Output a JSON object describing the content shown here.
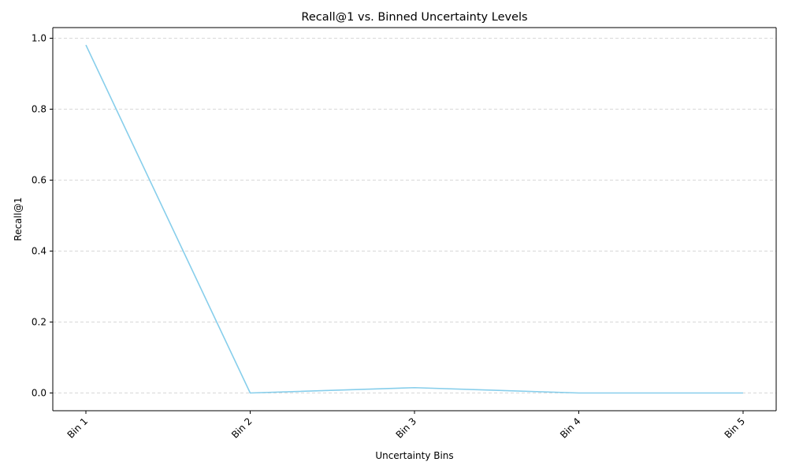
{
  "chart_data": {
    "type": "line",
    "title": "Recall@1 vs. Binned Uncertainty Levels",
    "xlabel": "Uncertainty Bins",
    "ylabel": "Recall@1",
    "categories": [
      "Bin 1",
      "Bin 2",
      "Bin 3",
      "Bin 4",
      "Bin 5"
    ],
    "series": [
      {
        "values": [
          0.981,
          0.0,
          0.015,
          0.0,
          0.0
        ],
        "color": "#87ceeb"
      }
    ],
    "ylim": [
      -0.05,
      1.03
    ],
    "yticks": [
      0.0,
      0.2,
      0.4,
      0.6,
      0.8,
      1.0
    ],
    "ytick_labels": [
      "0.0",
      "0.2",
      "0.4",
      "0.6",
      "0.8",
      "1.0"
    ],
    "grid": {
      "axis": "y",
      "style": "dashed",
      "color": "#cccccc"
    },
    "x_tick_rotation": "45 degrees"
  }
}
